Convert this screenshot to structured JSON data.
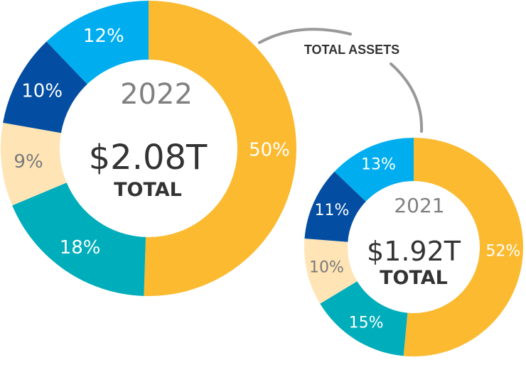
{
  "chart_data": [
    {
      "type": "pie",
      "year": "2022",
      "amount": "$2.08T",
      "total_label": "TOTAL",
      "slices": [
        {
          "label": "50%",
          "value": 50,
          "color": "#FBBA30"
        },
        {
          "label": "18%",
          "value": 18,
          "color": "#00ADBB"
        },
        {
          "label": "9%",
          "value": 9,
          "color": "#FFE4B5"
        },
        {
          "label": "10%",
          "value": 10,
          "color": "#034EA2"
        },
        {
          "label": "12%",
          "value": 12,
          "color": "#00AEEF"
        }
      ]
    },
    {
      "type": "pie",
      "year": "2021",
      "amount": "$1.92T",
      "total_label": "TOTAL",
      "slices": [
        {
          "label": "52%",
          "value": 52,
          "color": "#FBBA30"
        },
        {
          "label": "15%",
          "value": 15,
          "color": "#00ADBB"
        },
        {
          "label": "10%",
          "value": 10,
          "color": "#FFE4B5"
        },
        {
          "label": "11%",
          "value": 11,
          "color": "#034EA2"
        },
        {
          "label": "13%",
          "value": 13,
          "color": "#00AEEF"
        }
      ]
    }
  ],
  "callout": {
    "label": "TOTAL ASSETS",
    "line_color": "#999999"
  }
}
